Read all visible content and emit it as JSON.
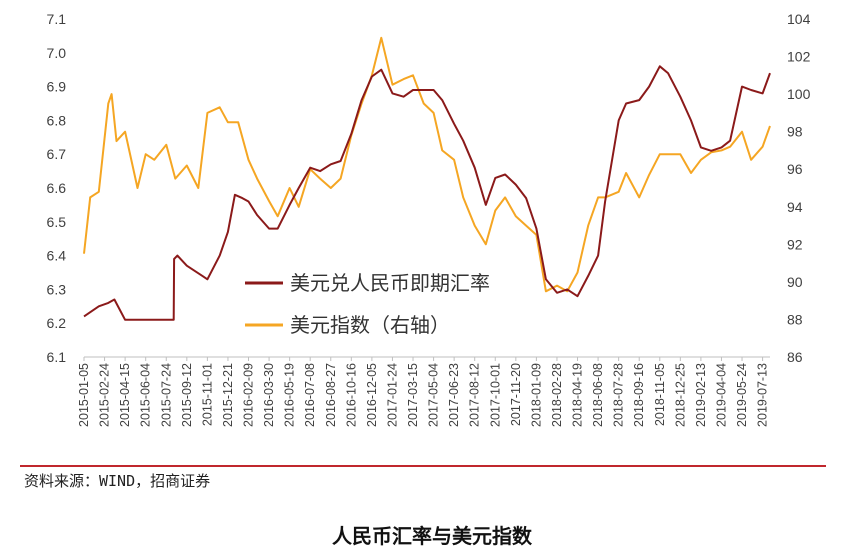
{
  "chart_data": {
    "type": "line",
    "title": "人民币汇率与美元指数",
    "source": "资料来源：WIND，招商证券",
    "left_axis": {
      "ylim": [
        6.1,
        7.1
      ],
      "ticks": [
        "6.1",
        "6.2",
        "6.3",
        "6.4",
        "6.5",
        "6.6",
        "6.7",
        "6.8",
        "6.9",
        "7.0",
        "7.1"
      ]
    },
    "right_axis": {
      "ylim": [
        86,
        104
      ],
      "ticks": [
        "86",
        "88",
        "90",
        "92",
        "94",
        "96",
        "98",
        "100",
        "102",
        "104"
      ]
    },
    "x_ticks": [
      "2015-01-05",
      "2015-02-24",
      "2015-04-15",
      "2015-06-04",
      "2015-07-24",
      "2015-09-12",
      "2015-11-01",
      "2015-12-21",
      "2016-02-09",
      "2016-03-30",
      "2016-05-19",
      "2016-07-08",
      "2016-08-27",
      "2016-10-16",
      "2016-12-05",
      "2017-01-24",
      "2017-03-15",
      "2017-05-04",
      "2017-06-23",
      "2017-08-12",
      "2017-10-01",
      "2017-11-20",
      "2018-01-09",
      "2018-02-28",
      "2018-04-19",
      "2018-06-08",
      "2018-07-28",
      "2018-09-16",
      "2018-11-05",
      "2018-12-25",
      "2019-02-13",
      "2019-04-04",
      "2019-05-24",
      "2019-07-13"
    ],
    "legend_position": "center",
    "series": [
      {
        "name": "美元兑人民币即期汇率",
        "axis": "left",
        "color": "#8b1a1a",
        "x": [
          "2015-01-05",
          "2015-02-10",
          "2015-03-05",
          "2015-03-20",
          "2015-04-15",
          "2015-05-15",
          "2015-06-10",
          "2015-07-24",
          "2015-08-11",
          "2015-08-12",
          "2015-08-20",
          "2015-09-12",
          "2015-10-20",
          "2015-11-01",
          "2015-12-01",
          "2015-12-21",
          "2016-01-07",
          "2016-01-25",
          "2016-02-09",
          "2016-03-01",
          "2016-03-30",
          "2016-04-20",
          "2016-05-19",
          "2016-06-10",
          "2016-07-08",
          "2016-08-01",
          "2016-08-27",
          "2016-09-20",
          "2016-10-16",
          "2016-11-10",
          "2016-12-05",
          "2016-12-28",
          "2017-01-24",
          "2017-02-20",
          "2017-03-15",
          "2017-04-10",
          "2017-05-04",
          "2017-05-25",
          "2017-06-23",
          "2017-07-15",
          "2017-08-12",
          "2017-09-08",
          "2017-10-01",
          "2017-10-25",
          "2017-11-20",
          "2017-12-15",
          "2018-01-09",
          "2018-02-01",
          "2018-02-28",
          "2018-03-25",
          "2018-04-19",
          "2018-05-15",
          "2018-06-08",
          "2018-06-25",
          "2018-07-28",
          "2018-08-15",
          "2018-09-16",
          "2018-10-10",
          "2018-11-05",
          "2018-11-25",
          "2018-12-25",
          "2019-01-20",
          "2019-02-13",
          "2019-03-10",
          "2019-04-04",
          "2019-04-25",
          "2019-05-24",
          "2019-06-15",
          "2019-07-13",
          "2019-07-31"
        ],
        "values": [
          6.22,
          6.25,
          6.26,
          6.27,
          6.21,
          6.21,
          6.21,
          6.21,
          6.21,
          6.39,
          6.4,
          6.37,
          6.34,
          6.33,
          6.4,
          6.47,
          6.58,
          6.57,
          6.56,
          6.52,
          6.48,
          6.48,
          6.55,
          6.6,
          6.66,
          6.65,
          6.67,
          6.68,
          6.76,
          6.86,
          6.93,
          6.95,
          6.88,
          6.87,
          6.89,
          6.89,
          6.89,
          6.86,
          6.79,
          6.74,
          6.66,
          6.55,
          6.63,
          6.64,
          6.61,
          6.57,
          6.48,
          6.33,
          6.29,
          6.3,
          6.28,
          6.34,
          6.4,
          6.56,
          6.8,
          6.85,
          6.86,
          6.9,
          6.96,
          6.94,
          6.87,
          6.8,
          6.72,
          6.71,
          6.72,
          6.74,
          6.9,
          6.89,
          6.88,
          6.94
        ]
      },
      {
        "name": "美元指数（右轴）",
        "axis": "right",
        "color": "#f5a623",
        "x": [
          "2015-01-05",
          "2015-01-20",
          "2015-02-10",
          "2015-03-05",
          "2015-03-13",
          "2015-03-25",
          "2015-04-15",
          "2015-05-15",
          "2015-06-04",
          "2015-06-25",
          "2015-07-24",
          "2015-08-15",
          "2015-09-12",
          "2015-10-10",
          "2015-11-01",
          "2015-12-01",
          "2015-12-21",
          "2016-01-15",
          "2016-02-09",
          "2016-03-01",
          "2016-03-30",
          "2016-04-20",
          "2016-05-19",
          "2016-06-10",
          "2016-07-08",
          "2016-08-01",
          "2016-08-27",
          "2016-09-20",
          "2016-10-16",
          "2016-11-10",
          "2016-12-05",
          "2016-12-28",
          "2017-01-24",
          "2017-02-20",
          "2017-03-15",
          "2017-04-10",
          "2017-05-04",
          "2017-05-25",
          "2017-06-23",
          "2017-07-15",
          "2017-08-12",
          "2017-09-08",
          "2017-10-01",
          "2017-10-25",
          "2017-11-20",
          "2017-12-15",
          "2018-01-09",
          "2018-02-01",
          "2018-02-28",
          "2018-03-25",
          "2018-04-19",
          "2018-05-15",
          "2018-06-08",
          "2018-06-25",
          "2018-07-28",
          "2018-08-15",
          "2018-09-16",
          "2018-10-10",
          "2018-11-05",
          "2018-11-25",
          "2018-12-25",
          "2019-01-20",
          "2019-02-13",
          "2019-03-10",
          "2019-04-04",
          "2019-04-25",
          "2019-05-24",
          "2019-06-15",
          "2019-07-13",
          "2019-07-31"
        ],
        "values": [
          91.5,
          94.5,
          94.8,
          99.5,
          100.0,
          97.5,
          98.0,
          95.0,
          96.8,
          96.5,
          97.3,
          95.5,
          96.2,
          95.0,
          99.0,
          99.3,
          98.5,
          98.5,
          96.5,
          95.5,
          94.3,
          93.5,
          95.0,
          94.0,
          96.0,
          95.5,
          95.0,
          95.5,
          97.8,
          99.5,
          101.0,
          103.0,
          100.5,
          100.8,
          101.0,
          99.5,
          99.0,
          97.0,
          96.5,
          94.5,
          93.0,
          92.0,
          93.8,
          94.5,
          93.5,
          93.0,
          92.5,
          89.5,
          89.8,
          89.5,
          90.5,
          93.0,
          94.5,
          94.5,
          94.8,
          95.8,
          94.5,
          95.7,
          96.8,
          96.8,
          96.8,
          95.8,
          96.5,
          96.9,
          97.0,
          97.2,
          98.0,
          96.5,
          97.2,
          98.3
        ]
      }
    ]
  }
}
